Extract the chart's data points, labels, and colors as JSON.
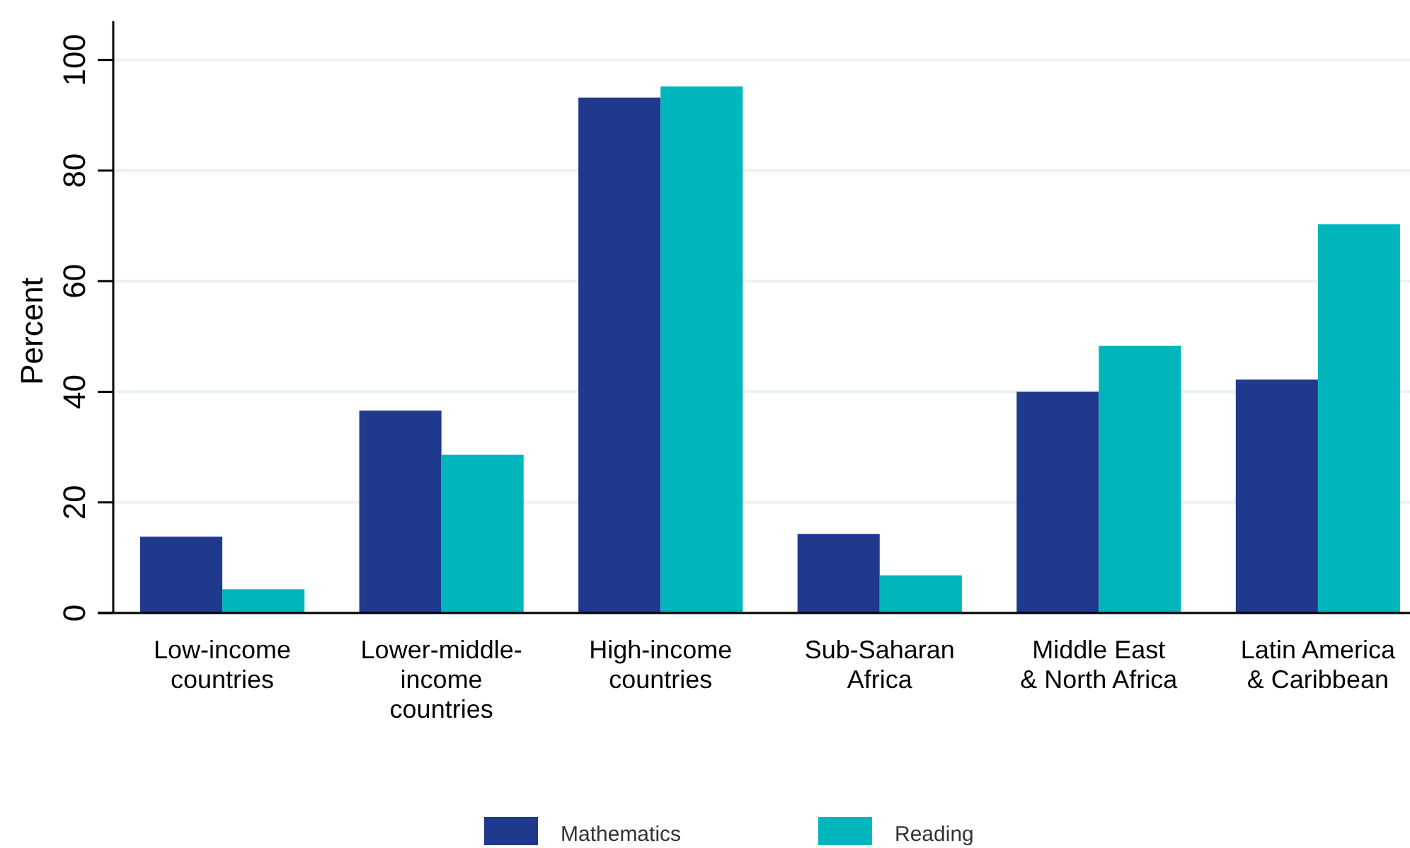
{
  "chart_data": {
    "type": "bar",
    "ylabel": "Percent",
    "categories": [
      "Low-income\ncountries",
      "Lower-middle-\nincome\ncountries",
      "High-income\ncountries",
      "Sub-Saharan\nAfrica",
      "Middle East\n& North Africa",
      "Latin America\n& Caribbean"
    ],
    "series": [
      {
        "name": "Mathematics",
        "color": "#1f3a8c",
        "values": [
          13.8,
          36.6,
          93.2,
          14.3,
          40.0,
          42.2
        ]
      },
      {
        "name": "Reading",
        "color": "#00b6bc",
        "values": [
          4.3,
          28.6,
          95.2,
          6.8,
          48.3,
          70.3
        ]
      }
    ],
    "ylim": [
      0,
      107
    ],
    "yticks": [
      0,
      20,
      40,
      60,
      80,
      100
    ],
    "grid": "y",
    "legend": "bottom"
  }
}
